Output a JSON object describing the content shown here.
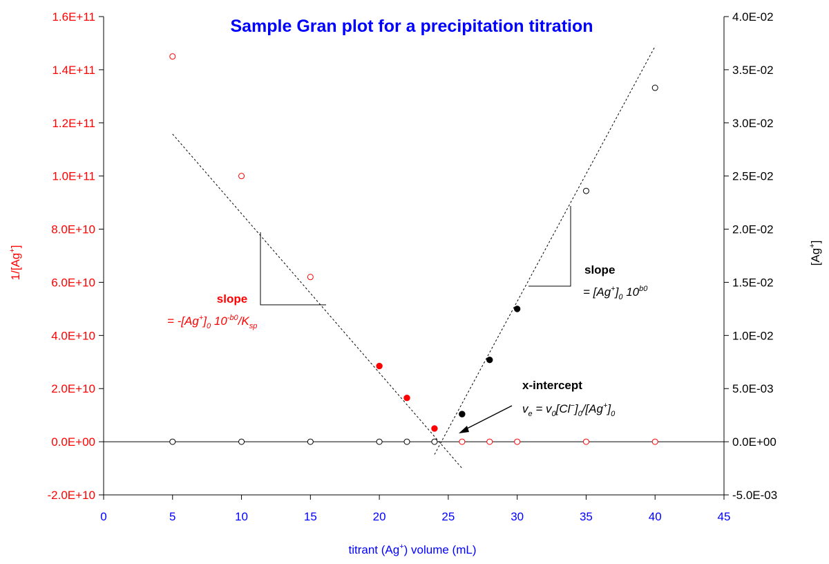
{
  "chart_data": {
    "type": "scatter",
    "title": "Sample Gran plot for a precipitation titration",
    "xlabel_main": "titrant (Ag",
    "xlabel_sup": "+",
    "xlabel_tail": ") volume (mL)",
    "ylabel_left_main": "1/[Ag",
    "ylabel_left_sup": "+",
    "ylabel_left_tail": "]",
    "ylabel_right_main": "[Ag",
    "ylabel_right_sup": "+",
    "ylabel_right_tail": "]",
    "xlim": [
      0,
      45
    ],
    "ylim_left": [
      -20000000000.0,
      160000000000.0
    ],
    "ylim_right": [
      -0.005,
      0.04
    ],
    "x_ticks": [
      "0",
      "5",
      "10",
      "15",
      "20",
      "25",
      "30",
      "35",
      "40",
      "45"
    ],
    "x_tick_values": [
      0,
      5,
      10,
      15,
      20,
      25,
      30,
      35,
      40,
      45
    ],
    "y_left_ticks": [
      "-2.0E+10",
      "0.0E+00",
      "2.0E+10",
      "4.0E+10",
      "6.0E+10",
      "8.0E+10",
      "1.0E+11",
      "1.2E+11",
      "1.4E+11",
      "1.6E+11"
    ],
    "y_left_tick_values": [
      -20000000000.0,
      0,
      20000000000.0,
      40000000000.0,
      60000000000.0,
      80000000000.0,
      100000000000.0,
      120000000000.0,
      140000000000.0,
      160000000000.0
    ],
    "y_right_ticks": [
      "-5.0E-03",
      "0.0E+00",
      "5.0E-03",
      "1.0E-02",
      "1.5E-02",
      "2.0E-02",
      "2.5E-02",
      "3.0E-02",
      "3.5E-02",
      "4.0E-02"
    ],
    "y_right_tick_values": [
      -0.005,
      0,
      0.005,
      0.01,
      0.015,
      0.02,
      0.025,
      0.03,
      0.035,
      0.04
    ],
    "grid": false,
    "colors": {
      "left_series": "#ff0000",
      "right_series": "#000000",
      "title": "#0000ff",
      "x_axis_text": "#0000ff",
      "left_axis_text": "#ff0000",
      "right_axis_text": "#000000"
    },
    "series": [
      {
        "axis": "left",
        "filled": false,
        "color": "#ff0000",
        "x": [
          5,
          10,
          15,
          26,
          28,
          30,
          35,
          40
        ],
        "y": [
          145000000000.0,
          100000000000.0,
          62000000000.0,
          0,
          0,
          0,
          0,
          0
        ]
      },
      {
        "axis": "left",
        "filled": true,
        "color": "#ff0000",
        "x": [
          20,
          22,
          24
        ],
        "y": [
          28500000000.0,
          16500000000.0,
          5000000000.0
        ]
      },
      {
        "axis": "right",
        "filled": false,
        "color": "#000000",
        "x": [
          5,
          10,
          15,
          20,
          22,
          24,
          35,
          40
        ],
        "y": [
          0,
          0,
          0,
          0,
          0,
          0,
          0.0236,
          0.0333
        ]
      },
      {
        "axis": "right",
        "filled": true,
        "color": "#000000",
        "x": [
          26,
          28,
          30
        ],
        "y": [
          0.0026,
          0.0077,
          0.0125
        ]
      }
    ],
    "fit_lines": [
      {
        "axis": "left",
        "color": "#000000",
        "x": [
          5,
          26
        ],
        "y": [
          115800000000.0,
          -10000000000.0
        ]
      },
      {
        "axis": "right",
        "color": "#000000",
        "x": [
          24,
          40
        ],
        "y": [
          -0.0012,
          0.0372
        ]
      }
    ],
    "annotations": {
      "left_slope_label": "slope",
      "left_slope_formula": {
        "p1": "= -[Ag",
        "p1_sup": "+",
        "p2": "]",
        "p2_sub": "0",
        "p3": " 10",
        "p3_sup": "-b0",
        "p4": "/K",
        "p4_sub": "sp"
      },
      "right_slope_label": "slope",
      "right_slope_formula": {
        "p1": "= [Ag",
        "p1_sup": "+",
        "p2": "]",
        "p2_sub": "0",
        "p3": " 10",
        "p3_sup": "b0"
      },
      "intercept_label": "x-intercept",
      "intercept_formula": {
        "p1": "v",
        "p1_sub": "e",
        "p2": " = v",
        "p2_sub": "0",
        "p3": "[Cl",
        "p3_sup": "−",
        "p4": "]",
        "p4_sub": "0",
        "p5": "/[Ag",
        "p5_sup": "+",
        "p6": "]",
        "p6_sub": "0"
      }
    }
  }
}
